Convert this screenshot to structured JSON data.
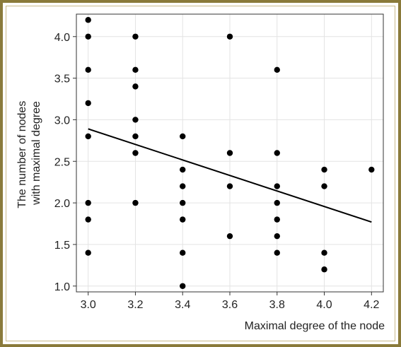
{
  "chart_data": {
    "type": "scatter",
    "title": "",
    "xlabel": "Maximal degree of the node",
    "ylabel_lines": [
      "The number of nodes",
      "with maximal degree"
    ],
    "xlim": [
      2.95,
      4.25
    ],
    "ylim": [
      0.93,
      4.27
    ],
    "x_ticks": [
      3.0,
      3.2,
      3.4,
      3.6,
      3.8,
      4.0,
      4.2
    ],
    "x_tick_labels": [
      "3.0",
      "3.2",
      "3.4",
      "3.6",
      "3.8",
      "4.0",
      "4.2"
    ],
    "y_ticks": [
      1.0,
      1.5,
      2.0,
      2.5,
      3.0,
      3.5,
      4.0
    ],
    "y_tick_labels": [
      "1.0",
      "1.5",
      "2.0",
      "2.5",
      "3.0",
      "3.5",
      "4.0"
    ],
    "grid": true,
    "points": [
      {
        "x": 3.0,
        "y": 4.2
      },
      {
        "x": 3.0,
        "y": 4.0
      },
      {
        "x": 3.0,
        "y": 3.6
      },
      {
        "x": 3.0,
        "y": 3.2
      },
      {
        "x": 3.0,
        "y": 2.8
      },
      {
        "x": 3.0,
        "y": 2.0
      },
      {
        "x": 3.0,
        "y": 1.8
      },
      {
        "x": 3.0,
        "y": 1.4
      },
      {
        "x": 3.2,
        "y": 4.0
      },
      {
        "x": 3.2,
        "y": 3.6
      },
      {
        "x": 3.2,
        "y": 3.4
      },
      {
        "x": 3.2,
        "y": 3.0
      },
      {
        "x": 3.2,
        "y": 2.8
      },
      {
        "x": 3.2,
        "y": 2.6
      },
      {
        "x": 3.2,
        "y": 2.0
      },
      {
        "x": 3.4,
        "y": 2.8
      },
      {
        "x": 3.4,
        "y": 2.4
      },
      {
        "x": 3.4,
        "y": 2.2
      },
      {
        "x": 3.4,
        "y": 2.0
      },
      {
        "x": 3.4,
        "y": 1.8
      },
      {
        "x": 3.4,
        "y": 1.4
      },
      {
        "x": 3.4,
        "y": 1.0
      },
      {
        "x": 3.6,
        "y": 4.0
      },
      {
        "x": 3.6,
        "y": 2.6
      },
      {
        "x": 3.6,
        "y": 2.2
      },
      {
        "x": 3.6,
        "y": 1.6
      },
      {
        "x": 3.8,
        "y": 3.6
      },
      {
        "x": 3.8,
        "y": 2.6
      },
      {
        "x": 3.8,
        "y": 2.2
      },
      {
        "x": 3.8,
        "y": 2.0
      },
      {
        "x": 3.8,
        "y": 1.8
      },
      {
        "x": 3.8,
        "y": 1.6
      },
      {
        "x": 3.8,
        "y": 1.4
      },
      {
        "x": 4.0,
        "y": 2.4
      },
      {
        "x": 4.0,
        "y": 2.2
      },
      {
        "x": 4.0,
        "y": 1.4
      },
      {
        "x": 4.0,
        "y": 1.2
      },
      {
        "x": 4.2,
        "y": 2.4
      }
    ],
    "trend_line": {
      "x": [
        3.0,
        4.2
      ],
      "y": [
        2.89,
        1.77
      ]
    },
    "colors": {
      "points": "#000000",
      "trend_line": "#000000",
      "grid": "#e3e3e3",
      "axis": "#333333",
      "frame_border": "#8a7a3a"
    }
  }
}
